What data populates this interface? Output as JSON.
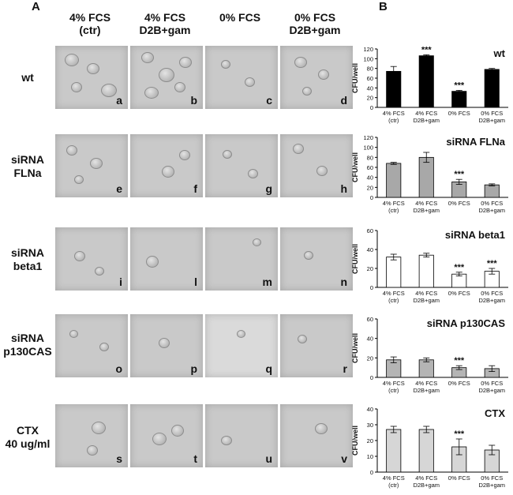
{
  "panels": {
    "a": "A",
    "b": "B"
  },
  "columns": [
    {
      "line1": "4% FCS",
      "line2": "(ctr)"
    },
    {
      "line1": "4% FCS",
      "line2": "D2B+gam"
    },
    {
      "line1": "0% FCS",
      "line2": ""
    },
    {
      "line1": "0% FCS",
      "line2": "D2B+gam"
    }
  ],
  "rows": [
    {
      "line1": "wt",
      "line2": "",
      "letters": [
        "a",
        "b",
        "c",
        "d"
      ]
    },
    {
      "line1": "siRNA",
      "line2": "FLNa",
      "letters": [
        "e",
        "f",
        "g",
        "h"
      ]
    },
    {
      "line1": "siRNA",
      "line2": "beta1",
      "letters": [
        "i",
        "l",
        "m",
        "n"
      ]
    },
    {
      "line1": "siRNA",
      "line2": "p130CAS",
      "letters": [
        "o",
        "p",
        "q",
        "r"
      ]
    },
    {
      "line1": "CTX",
      "line2": "40 ug/ml",
      "letters": [
        "s",
        "t",
        "u",
        "v"
      ]
    }
  ],
  "colors": {
    "wt": "#000000",
    "flna": "#a8a8a8",
    "beta1": "#ffffff",
    "p130": "#b4b4b4",
    "ctx": "#d6d6d6",
    "axis": "#000000"
  },
  "chart_data": [
    {
      "type": "bar",
      "title": "wt",
      "ylabel": "CFU/well",
      "ylim": [
        0,
        120
      ],
      "yticks": [
        0,
        20,
        40,
        60,
        80,
        100,
        120
      ],
      "categories": [
        [
          "4% FCS",
          "(ctr)"
        ],
        [
          "4% FCS",
          "D2B+gam"
        ],
        [
          "0% FCS",
          ""
        ],
        [
          "0% FCS",
          "D2B+gam"
        ]
      ],
      "values": [
        74,
        106,
        33,
        78
      ],
      "errors": [
        10,
        2,
        2,
        2
      ],
      "significance": [
        "",
        "***",
        "***",
        ""
      ],
      "fill": "#000000"
    },
    {
      "type": "bar",
      "title": "siRNA FLNa",
      "ylabel": "CFU/well",
      "ylim": [
        0,
        120
      ],
      "yticks": [
        0,
        20,
        40,
        60,
        80,
        100,
        120
      ],
      "categories": [
        [
          "4% FCS",
          "(ctr)"
        ],
        [
          "4% FCS",
          "D2B+gam"
        ],
        [
          "0% FCS",
          ""
        ],
        [
          "0% FCS",
          "D2B+gam"
        ]
      ],
      "values": [
        68,
        80,
        31,
        25
      ],
      "errors": [
        2,
        10,
        5,
        2
      ],
      "significance": [
        "",
        "",
        "***",
        ""
      ],
      "fill": "#a8a8a8"
    },
    {
      "type": "bar",
      "title": "siRNA beta1",
      "ylabel": "CFU/well",
      "ylim": [
        0,
        60
      ],
      "yticks": [
        0,
        20,
        40,
        60
      ],
      "categories": [
        [
          "4% FCS",
          "(ctr)"
        ],
        [
          "4% FCS",
          "D2B+gam"
        ],
        [
          "0% FCS",
          ""
        ],
        [
          "0% FCS",
          "D2B+gam"
        ]
      ],
      "values": [
        32,
        34,
        14,
        17
      ],
      "errors": [
        3,
        2,
        2,
        3
      ],
      "significance": [
        "",
        "",
        "***",
        "***"
      ],
      "fill": "#ffffff"
    },
    {
      "type": "bar",
      "title": "siRNA p130CAS",
      "ylabel": "CFU/well",
      "ylim": [
        0,
        60
      ],
      "yticks": [
        0,
        20,
        40,
        60
      ],
      "categories": [
        [
          "4% FCS",
          "(ctr)"
        ],
        [
          "4% FCS",
          "D2B+gam"
        ],
        [
          "0% FCS",
          ""
        ],
        [
          "0% FCS",
          "D2B+gam"
        ]
      ],
      "values": [
        18,
        18,
        10,
        9
      ],
      "errors": [
        3,
        2,
        2,
        3
      ],
      "significance": [
        "",
        "",
        "***",
        ""
      ],
      "fill": "#b4b4b4"
    },
    {
      "type": "bar",
      "title": "CTX",
      "ylabel": "CFU/well",
      "ylim": [
        0,
        40
      ],
      "yticks": [
        0,
        10,
        20,
        30,
        40
      ],
      "categories": [
        [
          "4% FCS",
          "(ctr)"
        ],
        [
          "4% FCS",
          "D2B+gam"
        ],
        [
          "0% FCS",
          ""
        ],
        [
          "0% FCS",
          "D2B+gam"
        ]
      ],
      "values": [
        27,
        27,
        16,
        14
      ],
      "errors": [
        2,
        2,
        5,
        3
      ],
      "significance": [
        "",
        "",
        "***",
        ""
      ],
      "fill": "#d6d6d6"
    }
  ]
}
